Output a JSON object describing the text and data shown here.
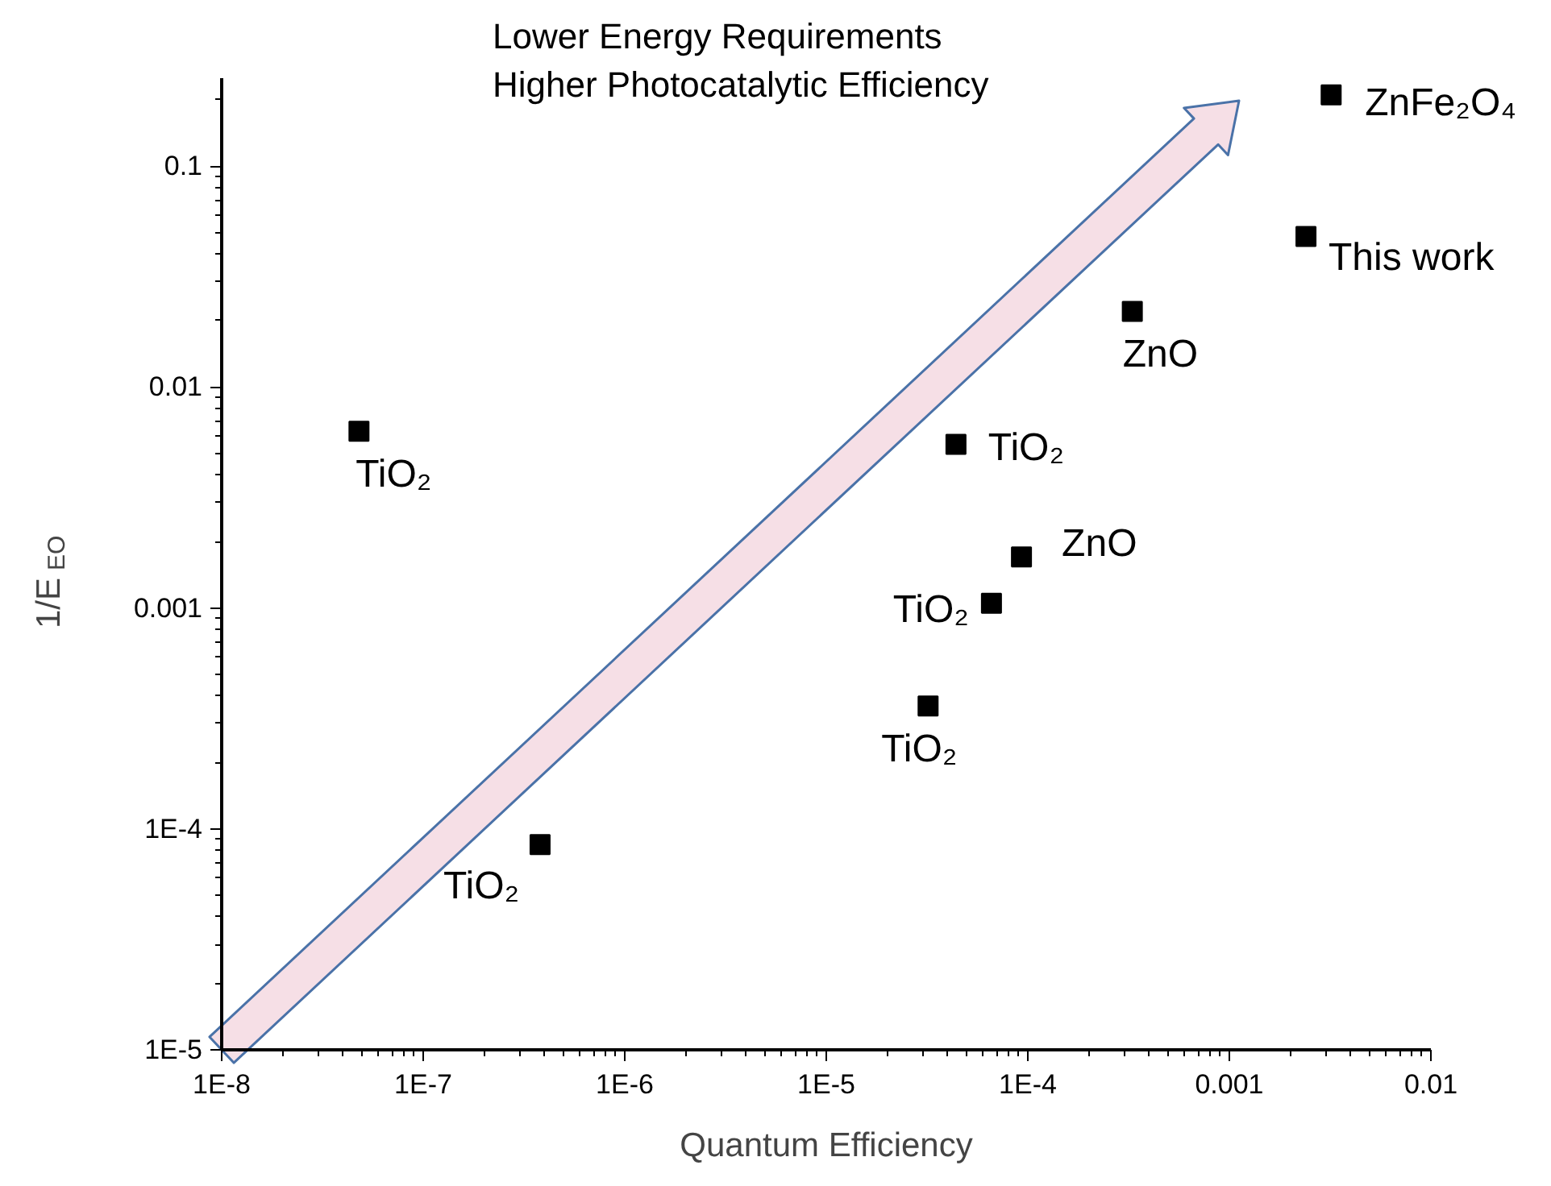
{
  "chart_data": {
    "type": "scatter",
    "xlabel": "Quantum Efficiency",
    "ylabel": "1/E$_{EO}$",
    "log": "xy",
    "grid": false,
    "marker": "square",
    "x": [
      4.8e-08,
      3.8e-07,
      3.2e-05,
      4.4e-05,
      6.6e-05,
      9.3e-05,
      0.00033,
      0.0024,
      0.0032
    ],
    "series": [
      {
        "color": "#000000",
        "values": [
          0.0063,
          8.5e-05,
          0.00036,
          0.0055,
          0.00105,
          0.0017,
          0.022,
          0.048,
          0.21
        ]
      }
    ],
    "xlim": [
      1e-08,
      0.01
    ],
    "ylim": [
      1e-05,
      0.25
    ],
    "xticks": [
      {
        "value": 1e-08,
        "label": "1E-8"
      },
      {
        "value": 1e-07,
        "label": "1E-7"
      },
      {
        "value": 1e-06,
        "label": "1E-6"
      },
      {
        "value": 1e-05,
        "label": "1E-5"
      },
      {
        "value": 0.0001,
        "label": "1E-4"
      },
      0.001,
      0.01
    ],
    "yticks": [
      {
        "value": 1e-05,
        "label": "1E-5"
      },
      {
        "value": 0.0001,
        "label": "1E-4"
      },
      0.001,
      0.01,
      0.1
    ],
    "annotations": [
      "Lower Energy Requirements",
      "Higher Photocatalytic Efficiency",
      {
        "text": "TiO₂",
        "x": 4.8e-08,
        "y": 0.0063
      },
      {
        "text": "TiO₂",
        "x": 3.8e-07,
        "y": 8.5e-05
      },
      {
        "text": "TiO₂",
        "x": 3.2e-05,
        "y": 0.00036
      },
      {
        "text": "TiO₂",
        "x": 4.4e-05,
        "y": 0.0055
      },
      {
        "text": "TiO₂",
        "x": 6.6e-05,
        "y": 0.00105
      },
      {
        "text": "ZnO",
        "x": 9.3e-05,
        "y": 0.0017
      },
      {
        "text": "ZnO",
        "x": 0.00033,
        "y": 0.022
      },
      {
        "text": "This work",
        "x": 0.0024,
        "y": 0.048
      },
      {
        "text": "ZnFe₂O₄",
        "x": 0.0032,
        "y": 0.21
      }
    ]
  }
}
